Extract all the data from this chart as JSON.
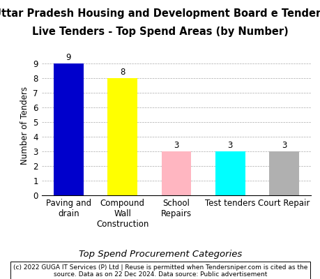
{
  "title_line1": "Uttar Pradesh Housing and Development Board e Tenders",
  "title_line2": "Live Tenders - Top Spend Areas (by Number)",
  "categories": [
    "Paving and\ndrain",
    "Compound\nWall\nConstruction",
    "School\nRepairs",
    "Test tenders",
    "Court Repair"
  ],
  "values": [
    9,
    8,
    3,
    3,
    3
  ],
  "bar_colors": [
    "#0000cc",
    "#ffff00",
    "#ffb6c1",
    "#00ffff",
    "#b0b0b0"
  ],
  "ylabel": "Number of Tenders",
  "xlabel": "Top Spend Procurement Categories",
  "ylim": [
    0,
    9.5
  ],
  "yticks": [
    0,
    1,
    2,
    3,
    4,
    5,
    6,
    7,
    8,
    9
  ],
  "footer": "(c) 2022 GUGA IT Services (P) Ltd | Reuse is permitted when Tendersniper.com is cited as the\nsource. Data as on 22 Dec 2024. Data source: Public advertisement",
  "background_color": "#ffffff",
  "title_fontsize": 10.5,
  "label_fontsize": 8.5,
  "tick_fontsize": 8.5,
  "footer_fontsize": 6.5
}
